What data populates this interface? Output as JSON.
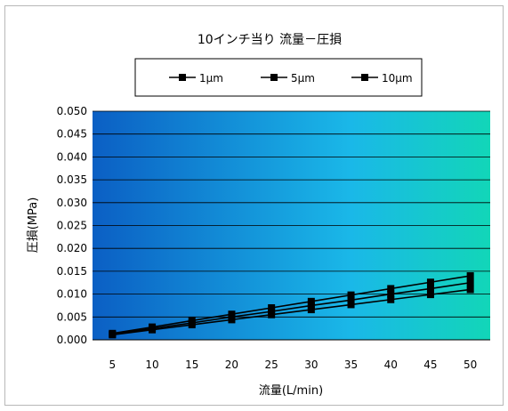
{
  "chart_data": {
    "type": "line",
    "title": "10インチ当り 流量－圧損",
    "xlabel": "流量(L/min)",
    "ylabel": "圧損(MPa)",
    "categories": [
      "5",
      "10",
      "15",
      "20",
      "25",
      "30",
      "35",
      "40",
      "45",
      "50"
    ],
    "x": [
      5,
      10,
      15,
      20,
      25,
      30,
      35,
      40,
      45,
      50
    ],
    "ylim": [
      0,
      0.05
    ],
    "yticks": [
      "0.000",
      "0.005",
      "0.010",
      "0.015",
      "0.020",
      "0.025",
      "0.030",
      "0.035",
      "0.040",
      "0.045",
      "0.050"
    ],
    "grid": true,
    "legend_position": "top",
    "series": [
      {
        "name": "1μm",
        "values": [
          0.0014,
          0.0028,
          0.0042,
          0.0056,
          0.007,
          0.0084,
          0.0098,
          0.0112,
          0.0126,
          0.014
        ]
      },
      {
        "name": "5μm",
        "values": [
          0.0012,
          0.0025,
          0.0037,
          0.005,
          0.0062,
          0.0075,
          0.0087,
          0.01,
          0.0112,
          0.0125
        ]
      },
      {
        "name": "10μm",
        "values": [
          0.0011,
          0.0022,
          0.0033,
          0.0044,
          0.0055,
          0.0066,
          0.0077,
          0.0088,
          0.0099,
          0.011
        ]
      }
    ],
    "colors": {
      "plot_gradient": [
        "#0b5fc4",
        "#1ab8e8",
        "#12d6b8"
      ],
      "line": "#000000",
      "grid": "#000000"
    }
  }
}
